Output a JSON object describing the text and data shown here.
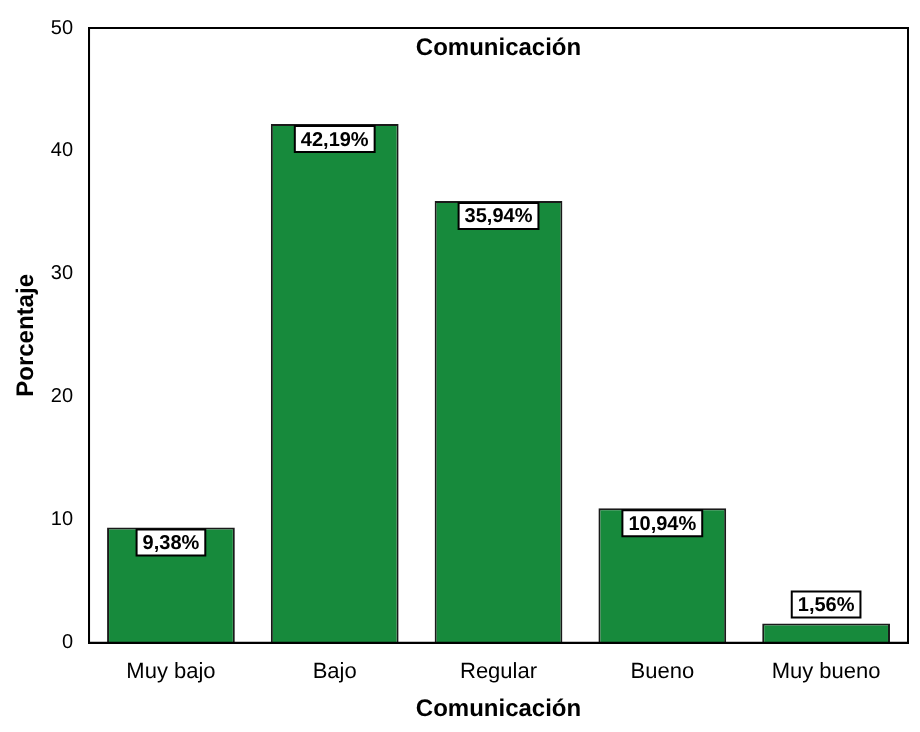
{
  "chart_data": {
    "type": "bar",
    "title": "Comunicación",
    "xlabel": "Comunicación",
    "ylabel": "Porcentaje",
    "categories": [
      "Muy bajo",
      "Bajo",
      "Regular",
      "Bueno",
      "Muy bueno"
    ],
    "values": [
      9.38,
      42.19,
      35.94,
      10.94,
      1.56
    ],
    "value_labels": [
      "9,38%",
      "42,19%",
      "35,94%",
      "10,94%",
      "1,56%"
    ],
    "color": "#178a3c",
    "ylim": [
      0,
      50
    ],
    "yticks": [
      0,
      10,
      20,
      30,
      40,
      50
    ],
    "grid": false,
    "legend": false
  }
}
